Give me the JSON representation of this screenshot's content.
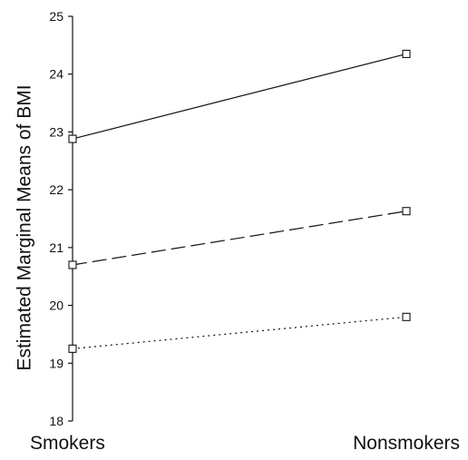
{
  "chart_data": {
    "type": "line",
    "title": "",
    "xlabel": "",
    "ylabel": "Estimated Marginal Means of BMI",
    "categories": [
      "Smokers",
      "Nonsmokers"
    ],
    "ylim": [
      18,
      25
    ],
    "yticks": [
      18,
      19,
      20,
      21,
      22,
      23,
      24,
      25
    ],
    "grid": false,
    "legend": "none",
    "series": [
      {
        "values": [
          22.88,
          24.35
        ],
        "line_style": "solid",
        "marker": "open-square",
        "color": "#111111"
      },
      {
        "values": [
          20.7,
          21.63
        ],
        "line_style": "dashed",
        "marker": "open-square",
        "color": "#111111"
      },
      {
        "values": [
          19.25,
          19.8
        ],
        "line_style": "dotted",
        "marker": "open-square",
        "color": "#111111"
      }
    ]
  }
}
